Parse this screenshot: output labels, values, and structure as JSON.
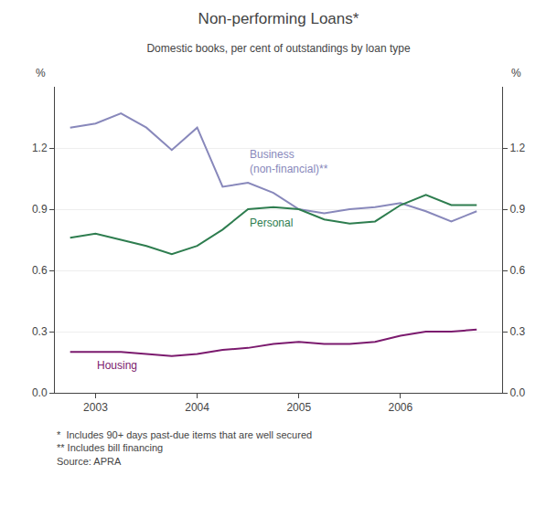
{
  "chart_data": {
    "type": "line",
    "title": "Non-performing Loans*",
    "subtitle": "Domestic books, per cent of outstandings by loan type",
    "footnotes": [
      "*  Includes 90+ days past-due items that are well secured",
      "** Includes bill financing",
      "Source: APRA"
    ],
    "ylabel": "%",
    "y2label": "%",
    "x": [
      2002.75,
      2003.0,
      2003.25,
      2003.5,
      2003.75,
      2004.0,
      2004.25,
      2004.5,
      2004.75,
      2005.0,
      2005.25,
      2005.5,
      2005.75,
      2006.0,
      2006.25,
      2006.5,
      2006.75
    ],
    "series": [
      {
        "name": "Business\n(non-financial)**",
        "color": "#8888bb",
        "values": [
          1.3,
          1.32,
          1.37,
          1.3,
          1.19,
          1.3,
          1.01,
          1.03,
          0.98,
          0.9,
          0.88,
          0.9,
          0.91,
          0.93,
          0.89,
          0.84,
          0.89
        ]
      },
      {
        "name": "Personal",
        "color": "#2e7d4f",
        "values": [
          0.76,
          0.78,
          0.75,
          0.72,
          0.68,
          0.72,
          0.8,
          0.9,
          0.91,
          0.9,
          0.85,
          0.83,
          0.84,
          0.92,
          0.97,
          0.92,
          0.92
        ]
      },
      {
        "name": "Housing",
        "color": "#7b1a6e",
        "values": [
          0.2,
          0.2,
          0.2,
          0.19,
          0.18,
          0.19,
          0.21,
          0.22,
          0.24,
          0.25,
          0.24,
          0.24,
          0.25,
          0.28,
          0.3,
          0.3,
          0.31
        ]
      }
    ],
    "xlim": [
      2002.6,
      2007.0
    ],
    "xticks": [
      2003,
      2004,
      2005,
      2006
    ],
    "ylim": [
      0.0,
      1.5
    ],
    "yticks": [
      {
        "value": 0.0,
        "label": "0.0"
      },
      0.3,
      0.6,
      0.9,
      1.2
    ],
    "y2lim": [
      0.0,
      1.5
    ],
    "y2ticks": [
      {
        "value": 0.0,
        "label": "0.0"
      },
      0.3,
      0.6,
      0.9,
      1.2
    ],
    "grid": true
  }
}
